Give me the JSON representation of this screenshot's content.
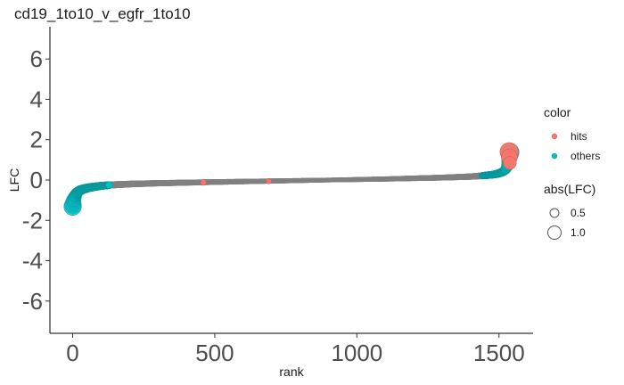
{
  "chart_data": {
    "type": "scatter",
    "title": "cd19_1to10_v_egfr_1to10",
    "xlabel": "rank",
    "ylabel": "LFC",
    "xlim": [
      -80,
      1620
    ],
    "ylim": [
      -7.6,
      7.6
    ],
    "x_ticks": [
      0,
      500,
      1000,
      1500
    ],
    "x_tick_labels": [
      "0",
      "500",
      "1000",
      "1500"
    ],
    "y_ticks": [
      -6,
      -4,
      -2,
      0,
      2,
      4,
      6
    ],
    "y_tick_labels": [
      "-6",
      "-4",
      "-2",
      "0",
      "2",
      "4",
      "6"
    ],
    "grid": false,
    "legend_position": "right",
    "n_points": 1540,
    "curve_shape": {
      "x": [
        0,
        3,
        8,
        15,
        25,
        40,
        60,
        100,
        140,
        200,
        300,
        500,
        700,
        900,
        1100,
        1300,
        1400,
        1440,
        1480,
        1500,
        1515,
        1525,
        1532,
        1536,
        1539
      ],
      "y": [
        -1.32,
        -1.05,
        -0.82,
        -0.64,
        -0.52,
        -0.44,
        -0.37,
        -0.29,
        -0.24,
        -0.2,
        -0.16,
        -0.1,
        -0.05,
        0.0,
        0.05,
        0.12,
        0.17,
        0.21,
        0.27,
        0.33,
        0.42,
        0.55,
        0.8,
        1.1,
        1.38
      ]
    },
    "hit_points": [
      {
        "x": 1536,
        "y": 1.4
      },
      {
        "x": 1537,
        "y": 1.15
      },
      {
        "x": 1538,
        "y": 0.85
      },
      {
        "x": 460,
        "y": -0.12
      },
      {
        "x": 690,
        "y": -0.06
      }
    ],
    "series": [
      {
        "name": "hits",
        "color": "#F8766D"
      },
      {
        "name": "others",
        "color": "#00BFC4"
      }
    ],
    "middle_color": "#808080",
    "size_legend": {
      "title": "abs(LFC)",
      "values": [
        0.5,
        1.0
      ],
      "labels": [
        "0.5",
        "1.0"
      ]
    },
    "color_legend_title": "color"
  }
}
